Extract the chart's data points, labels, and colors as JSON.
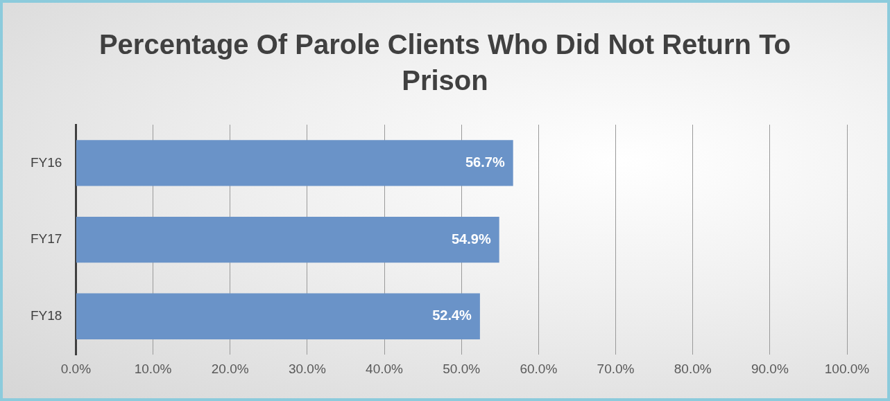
{
  "chart_data": {
    "type": "bar",
    "orientation": "horizontal",
    "title": "Percentage Of Parole Clients Who Did Not Return To Prison",
    "categories": [
      "FY16",
      "FY17",
      "FY18"
    ],
    "values": [
      56.7,
      54.9,
      52.4
    ],
    "value_labels": [
      "56.7%",
      "54.9%",
      "52.4%"
    ],
    "color": "#6a93c8",
    "xlim": [
      0,
      100
    ],
    "xticks": [
      {
        "value": 0,
        "label": "0.0%"
      },
      {
        "value": 10,
        "label": "10.0%"
      },
      {
        "value": 20,
        "label": "20.0%"
      },
      {
        "value": 30,
        "label": "30.0%"
      },
      {
        "value": 40,
        "label": "40.0%"
      },
      {
        "value": 50,
        "label": "50.0%"
      },
      {
        "value": 60,
        "label": "60.0%"
      },
      {
        "value": 70,
        "label": "70.0%"
      },
      {
        "value": 80,
        "label": "80.0%"
      },
      {
        "value": 90,
        "label": "90.0%"
      },
      {
        "value": 100,
        "label": "100.0%"
      }
    ],
    "grid": "x",
    "legend": false
  }
}
